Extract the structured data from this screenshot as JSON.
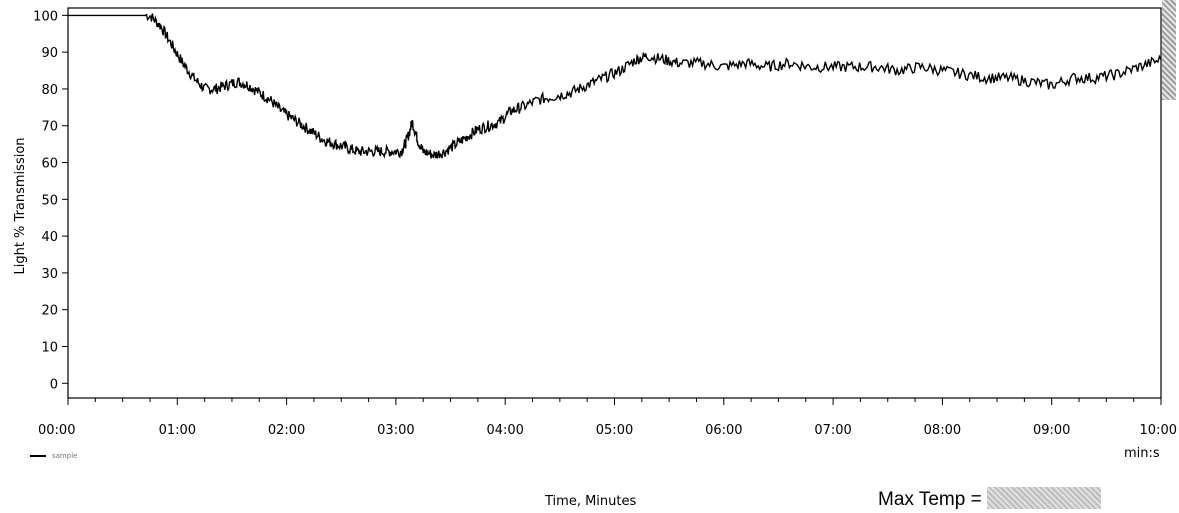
{
  "chart_data": {
    "type": "line",
    "xlabel": "Time, Minutes",
    "ylabel": "Light % Transmission",
    "x_unit_label": "min:s",
    "xlim": [
      0,
      10
    ],
    "ylim": [
      -4,
      102
    ],
    "x_ticks": [
      0,
      1,
      2,
      3,
      4,
      5,
      6,
      7,
      8,
      9,
      10
    ],
    "x_tick_labels": [
      "00:00",
      "01:00",
      "02:00",
      "03:00",
      "04:00",
      "05:00",
      "06:00",
      "07:00",
      "08:00",
      "09:00",
      "10:00"
    ],
    "y_ticks": [
      0,
      10,
      20,
      30,
      40,
      50,
      60,
      70,
      80,
      90,
      100
    ],
    "y_tick_labels": [
      "0",
      "10",
      "20",
      "30",
      "40",
      "50",
      "60",
      "70",
      "80",
      "90",
      "100"
    ],
    "grid": false,
    "series": [
      {
        "color": "#000000",
        "x": [
          0,
          0.2,
          0.4,
          0.6,
          0.75,
          0.85,
          0.95,
          1.05,
          1.15,
          1.25,
          1.35,
          1.45,
          1.55,
          1.65,
          1.75,
          1.85,
          1.95,
          2.05,
          2.15,
          2.25,
          2.35,
          2.45,
          2.55,
          2.65,
          2.75,
          2.85,
          2.95,
          3.05,
          3.1,
          3.15,
          3.2,
          3.25,
          3.35,
          3.45,
          3.55,
          3.65,
          3.75,
          3.85,
          3.95,
          4.05,
          4.15,
          4.3,
          4.45,
          4.6,
          4.75,
          4.9,
          5.05,
          5.2,
          5.3,
          5.45,
          5.6,
          5.8,
          6.0,
          6.2,
          6.4,
          6.6,
          6.8,
          7.0,
          7.2,
          7.4,
          7.6,
          7.8,
          8.0,
          8.2,
          8.4,
          8.6,
          8.8,
          9.0,
          9.2,
          9.4,
          9.6,
          9.8,
          10.0
        ],
        "y": [
          100,
          100,
          100,
          100,
          100,
          97,
          92,
          87,
          83,
          80,
          80,
          81,
          82,
          81,
          79,
          77,
          74,
          72,
          70,
          68,
          66,
          65,
          64,
          63,
          63,
          63,
          63,
          63,
          66,
          71,
          66,
          63,
          62,
          63,
          65,
          67,
          69,
          70,
          71,
          74,
          75,
          77,
          78,
          79,
          81,
          83,
          85,
          88,
          89,
          88,
          87,
          87,
          86,
          87,
          86,
          87,
          86,
          86,
          86,
          86,
          85,
          86,
          85,
          84,
          83,
          83,
          82,
          81,
          83,
          83,
          84,
          86,
          88
        ]
      }
    ]
  },
  "legend": {
    "label": "sample"
  },
  "footer": {
    "max_temp_label": "Max Temp ="
  }
}
